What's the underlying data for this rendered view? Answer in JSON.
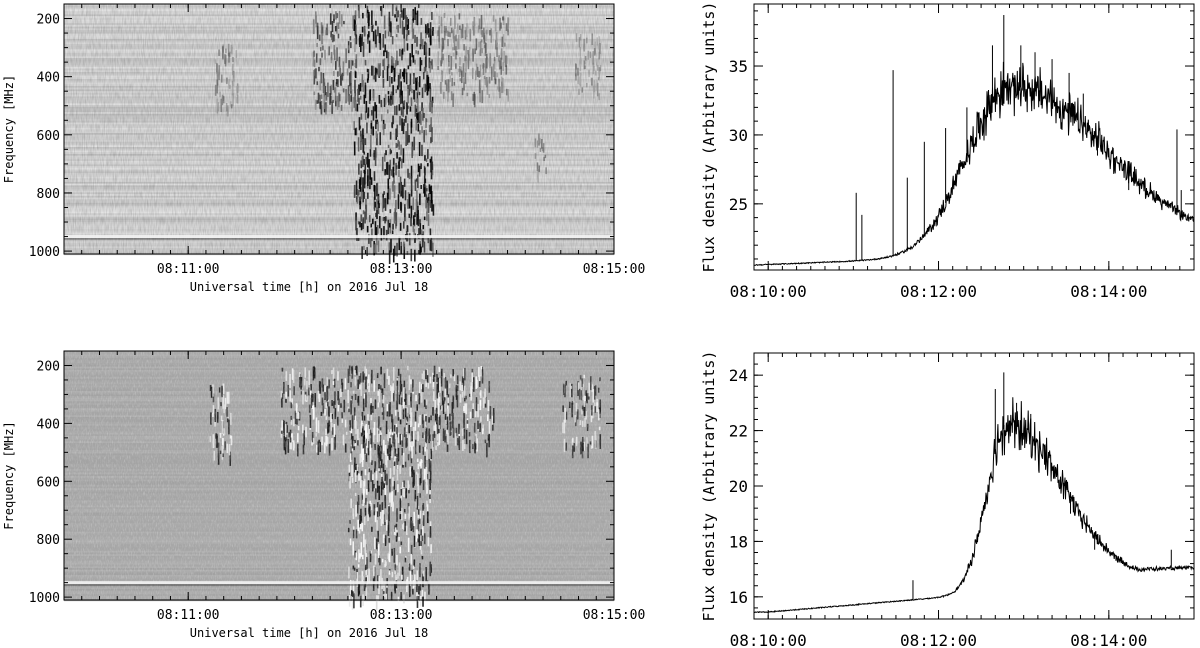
{
  "chart_data": [
    {
      "type": "heatmap",
      "panel": "top-left",
      "xlabel": "Universal time [h] on 2016 Jul 18",
      "ylabel": "Frequency [MHz]",
      "x_ticks": [
        "08:11:00",
        "08:13:00",
        "08:15:00"
      ],
      "y_ticks": [
        "200",
        "400",
        "600",
        "800",
        "1000"
      ],
      "ylim": [
        1010,
        150
      ],
      "xlim_seconds": [
        -10,
        300
      ],
      "colormap": "grayscale",
      "background_level": 0.82,
      "burst_regions": [
        {
          "t_start": 153,
          "t_end": 198,
          "f_low": 150,
          "f_high": 1000,
          "intensity": 0.95
        },
        {
          "t_start": 130,
          "t_end": 155,
          "f_low": 170,
          "f_high": 500,
          "intensity": 0.75
        },
        {
          "t_start": 75,
          "t_end": 88,
          "f_low": 280,
          "f_high": 500,
          "intensity": 0.45
        },
        {
          "t_start": 200,
          "t_end": 240,
          "f_low": 180,
          "f_high": 460,
          "intensity": 0.55
        },
        {
          "t_start": 278,
          "t_end": 292,
          "f_low": 250,
          "f_high": 460,
          "intensity": 0.45
        },
        {
          "t_start": 255,
          "t_end": 262,
          "f_low": 580,
          "f_high": 720,
          "intensity": 0.5
        }
      ]
    },
    {
      "type": "line",
      "panel": "top-right",
      "ylabel": "Flux density (Arbitrary units)",
      "xlabel": "",
      "x_ticks": [
        "08:10:00",
        "08:12:00",
        "08:14:00"
      ],
      "y_ticks": [
        25,
        30,
        35
      ],
      "ylim": [
        20.2,
        39.5
      ],
      "xlim_seconds": [
        -10,
        300
      ],
      "baseline": 20.6,
      "bump": {
        "peak_time": 170,
        "peak_value": 33.5,
        "rise_width": 30,
        "decay_width": 48
      },
      "spikes": [
        {
          "t": 62,
          "v": 25.8
        },
        {
          "t": 66,
          "v": 24.2
        },
        {
          "t": 88,
          "v": 34.7
        },
        {
          "t": 98,
          "v": 26.9
        },
        {
          "t": 110,
          "v": 29.5
        },
        {
          "t": 125,
          "v": 30.5
        },
        {
          "t": 140,
          "v": 32.0
        },
        {
          "t": 158,
          "v": 36.5
        },
        {
          "t": 166,
          "v": 38.7
        },
        {
          "t": 178,
          "v": 36.5
        },
        {
          "t": 188,
          "v": 36.0
        },
        {
          "t": 200,
          "v": 35.5
        },
        {
          "t": 212,
          "v": 34.5
        },
        {
          "t": 222,
          "v": 33.0
        },
        {
          "t": 232,
          "v": 28.5
        },
        {
          "t": 244,
          "v": 28.0
        },
        {
          "t": 254,
          "v": 26.0
        },
        {
          "t": 288,
          "v": 30.4
        },
        {
          "t": 291,
          "v": 26.0
        }
      ]
    },
    {
      "type": "heatmap",
      "panel": "bottom-left",
      "xlabel": "Universal time [h] on 2016 Jul 18",
      "ylabel": "Frequency [MHz]",
      "x_ticks": [
        "08:11:00",
        "08:13:00",
        "08:15:00"
      ],
      "y_ticks": [
        "200",
        "400",
        "600",
        "800",
        "1000"
      ],
      "ylim": [
        1010,
        150
      ],
      "xlim_seconds": [
        -10,
        300
      ],
      "colormap": "grayscale",
      "background_level": 0.66,
      "burst_regions": [
        {
          "t_start": 150,
          "t_end": 197,
          "f_low": 400,
          "f_high": 1000,
          "intensity": 0.95
        },
        {
          "t_start": 112,
          "t_end": 232,
          "f_low": 200,
          "f_high": 480,
          "intensity": 0.9
        },
        {
          "t_start": 72,
          "t_end": 84,
          "f_low": 260,
          "f_high": 520,
          "intensity": 0.8
        },
        {
          "t_start": 270,
          "t_end": 292,
          "f_low": 230,
          "f_high": 480,
          "intensity": 0.7
        }
      ]
    },
    {
      "type": "line",
      "panel": "bottom-right",
      "ylabel": "Flux density (Arbitrary units)",
      "xlabel": "",
      "x_ticks": [
        "08:10:00",
        "08:12:00",
        "08:14:00"
      ],
      "y_ticks": [
        16,
        18,
        20,
        22,
        24
      ],
      "ylim": [
        15.2,
        24.8
      ],
      "xlim_seconds": [
        -10,
        300
      ],
      "baseline_start": 15.45,
      "baseline_end": 16.75,
      "bump": {
        "peak_time": 168,
        "peak_value": 22.2,
        "rise_width": 14,
        "decay_width": 28
      },
      "spikes": [
        {
          "t": 102,
          "v": 16.6
        },
        {
          "t": 160,
          "v": 23.5
        },
        {
          "t": 166,
          "v": 24.1
        },
        {
          "t": 175,
          "v": 23.0
        },
        {
          "t": 185,
          "v": 22.6
        },
        {
          "t": 195,
          "v": 21.5
        },
        {
          "t": 205,
          "v": 20.0
        },
        {
          "t": 213,
          "v": 19.0
        },
        {
          "t": 230,
          "v": 17.7
        },
        {
          "t": 245,
          "v": 17.3
        },
        {
          "t": 284,
          "v": 17.7
        }
      ]
    }
  ]
}
